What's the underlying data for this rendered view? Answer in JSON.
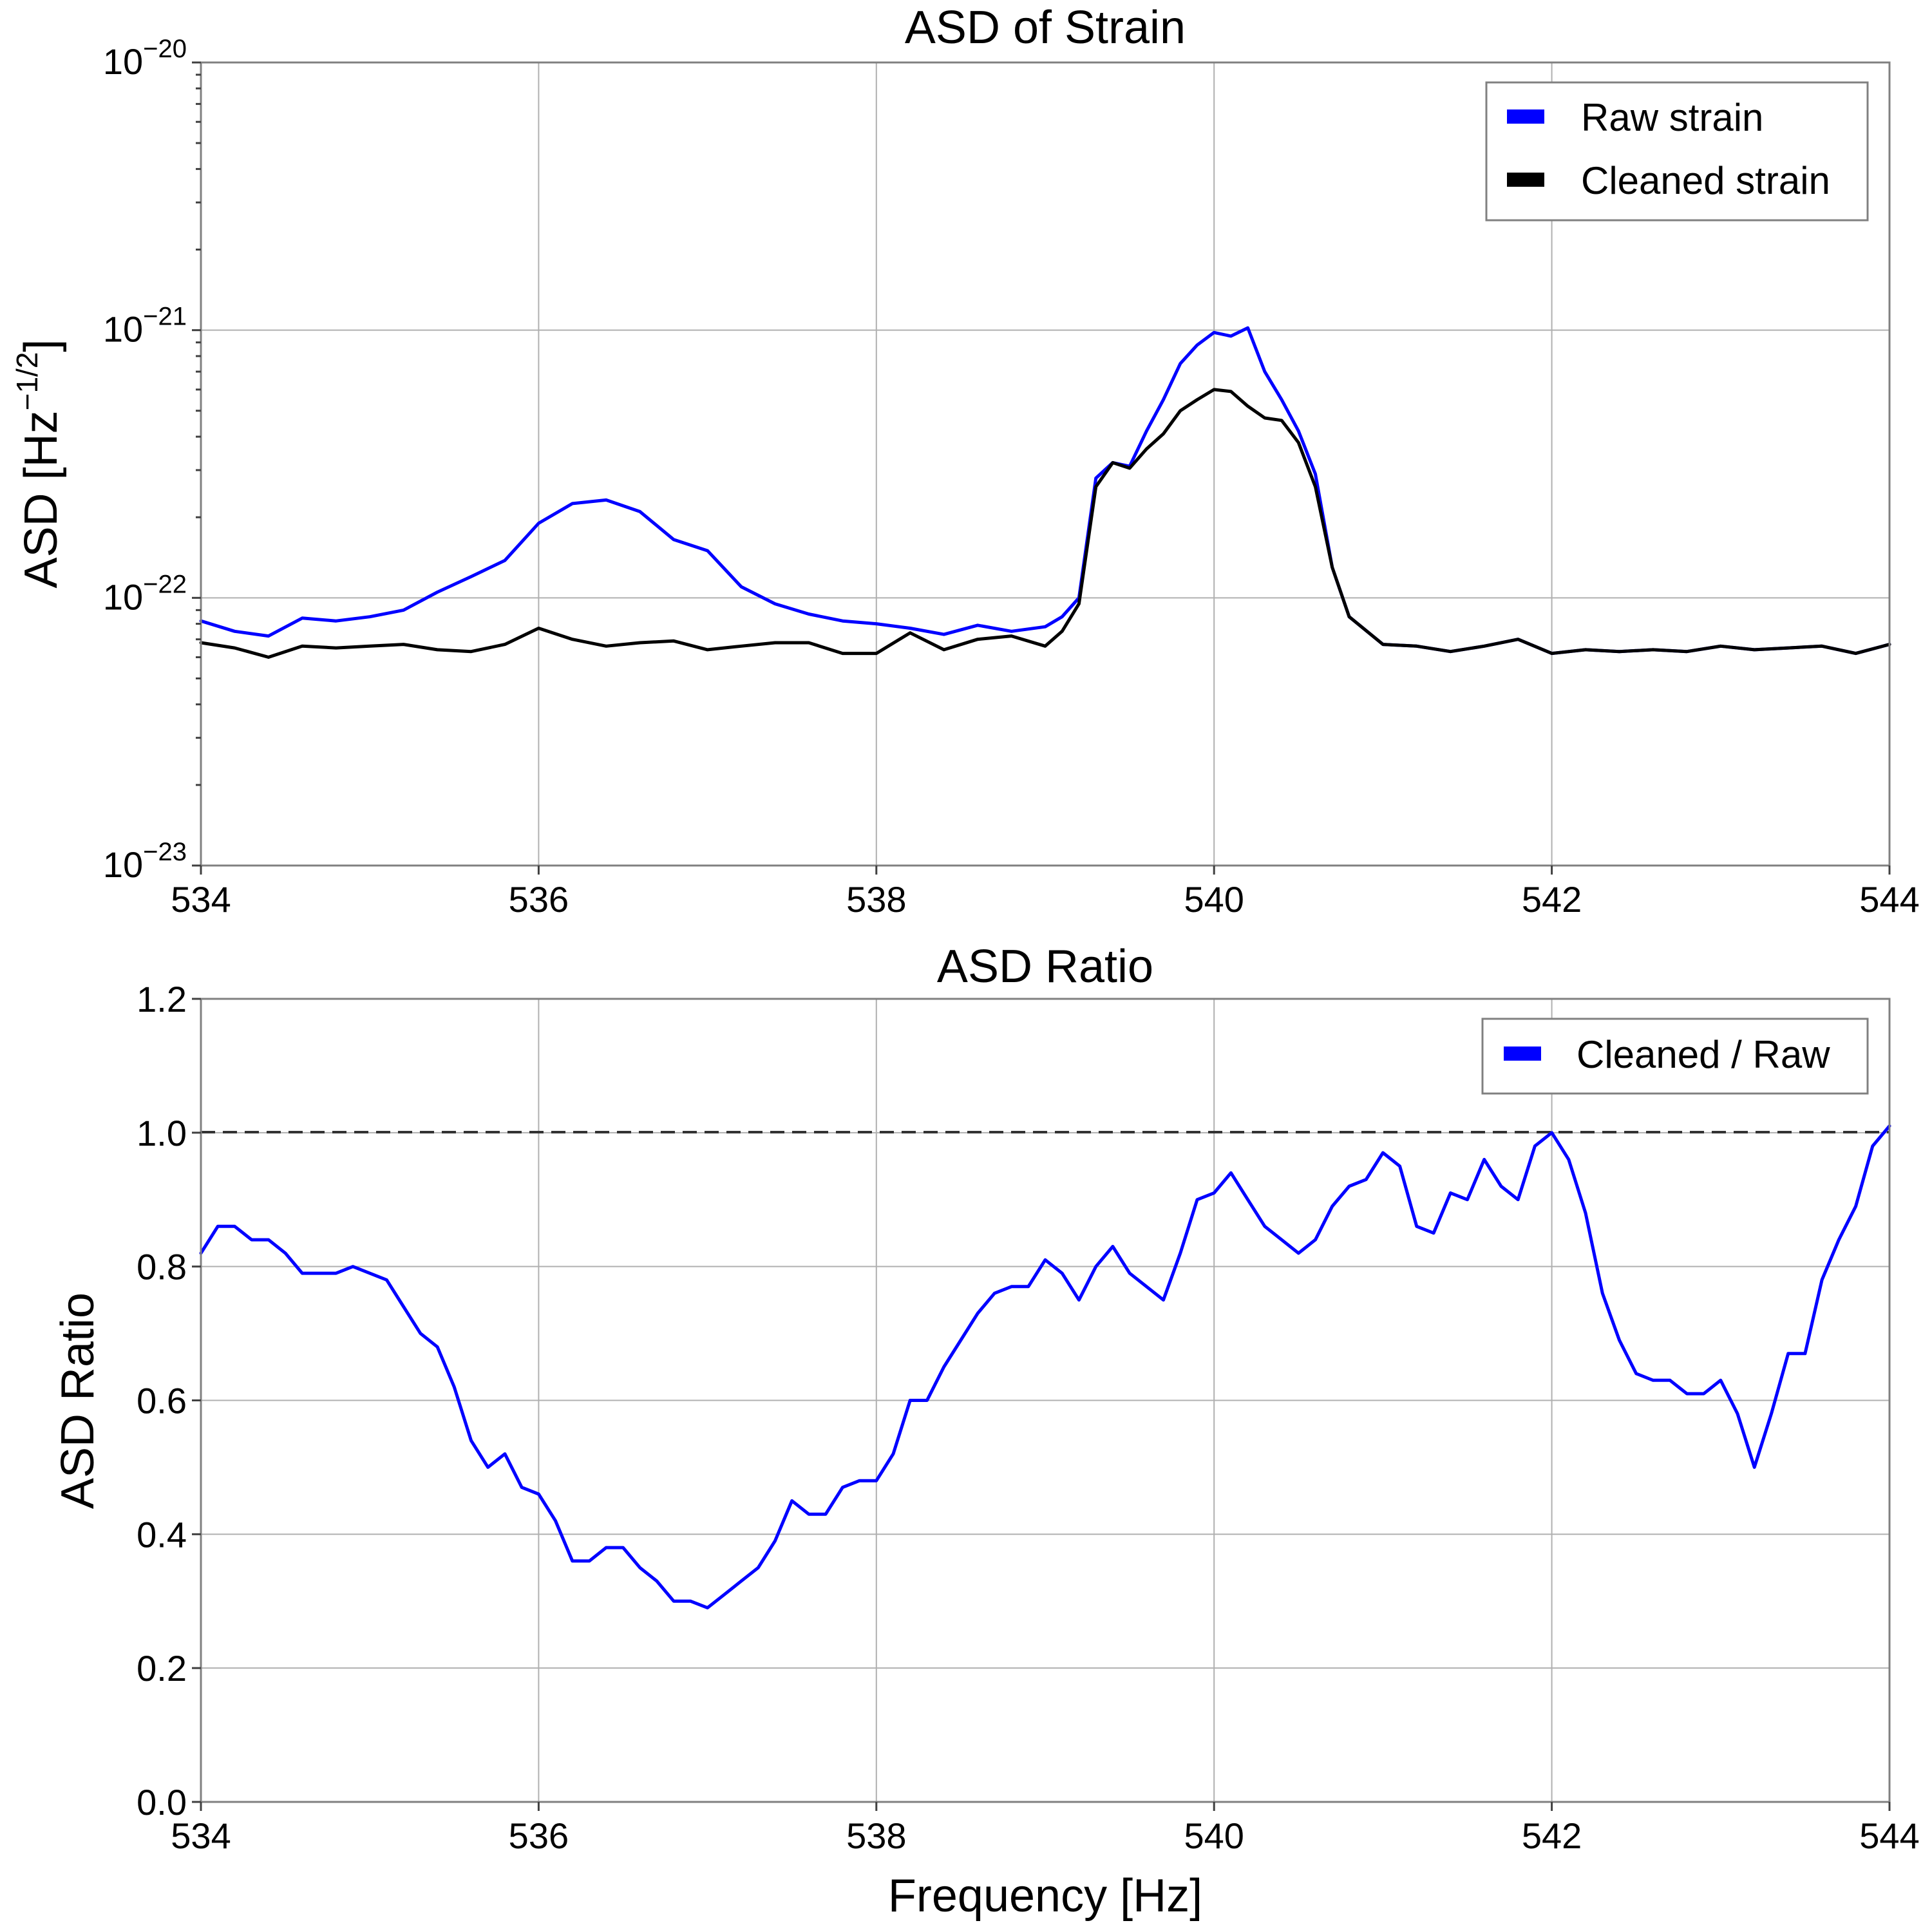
{
  "chart_data": [
    {
      "type": "line",
      "title": "ASD of Strain",
      "xlabel": "",
      "ylabel_main": "ASD [Hz",
      "ylabel_exp": "−1/2",
      "ylabel_close": "]",
      "xlim": [
        534,
        544
      ],
      "ylim": [
        1e-23,
        1e-20
      ],
      "yscale": "log",
      "grid": true,
      "legend_position": "top-right",
      "x_ticks": [
        534,
        536,
        538,
        540,
        542,
        544
      ],
      "x_tick_labels": [
        "534",
        "536",
        "538",
        "540",
        "542",
        "544"
      ],
      "y_ticks": [
        1e-23,
        1e-22,
        1e-21,
        1e-20
      ],
      "y_tick_labels": [
        {
          "base": "10",
          "exp": "−23"
        },
        {
          "base": "10",
          "exp": "−22"
        },
        {
          "base": "10",
          "exp": "−21"
        },
        {
          "base": "10",
          "exp": "−20"
        }
      ],
      "series": [
        {
          "name": "Raw strain",
          "color": "#0000ff",
          "points": [
            [
              534.0,
              8.2e-23
            ],
            [
              534.2,
              7.5e-23
            ],
            [
              534.4,
              7.2e-23
            ],
            [
              534.6,
              8.4e-23
            ],
            [
              534.8,
              8.2e-23
            ],
            [
              535.0,
              8.5e-23
            ],
            [
              535.2,
              9e-23
            ],
            [
              535.4,
              1.05e-22
            ],
            [
              535.6,
              1.2e-22
            ],
            [
              535.8,
              1.38e-22
            ],
            [
              536.0,
              1.9e-22
            ],
            [
              536.2,
              2.25e-22
            ],
            [
              536.4,
              2.32e-22
            ],
            [
              536.6,
              2.1e-22
            ],
            [
              536.8,
              1.65e-22
            ],
            [
              537.0,
              1.5e-22
            ],
            [
              537.2,
              1.1e-22
            ],
            [
              537.4,
              9.5e-23
            ],
            [
              537.6,
              8.7e-23
            ],
            [
              537.8,
              8.2e-23
            ],
            [
              538.0,
              8e-23
            ],
            [
              538.2,
              7.7e-23
            ],
            [
              538.4,
              7.3e-23
            ],
            [
              538.6,
              7.9e-23
            ],
            [
              538.8,
              7.5e-23
            ],
            [
              539.0,
              7.8e-23
            ],
            [
              539.1,
              8.5e-23
            ],
            [
              539.2,
              1e-22
            ],
            [
              539.3,
              2.8e-22
            ],
            [
              539.4,
              3.2e-22
            ],
            [
              539.5,
              3.1e-22
            ],
            [
              539.6,
              4.2e-22
            ],
            [
              539.7,
              5.5e-22
            ],
            [
              539.8,
              7.5e-22
            ],
            [
              539.9,
              8.8e-22
            ],
            [
              540.0,
              9.8e-22
            ],
            [
              540.1,
              9.5e-22
            ],
            [
              540.2,
              1.02e-21
            ],
            [
              540.3,
              7e-22
            ],
            [
              540.4,
              5.5e-22
            ],
            [
              540.5,
              4.2e-22
            ],
            [
              540.6,
              2.9e-22
            ],
            [
              540.7,
              1.3e-22
            ],
            [
              540.8,
              8.5e-23
            ],
            [
              541.0,
              6.7e-23
            ],
            [
              541.2,
              6.6e-23
            ],
            [
              541.4,
              6.3e-23
            ],
            [
              541.6,
              6.6e-23
            ],
            [
              541.8,
              7e-23
            ],
            [
              542.0,
              6.2e-23
            ],
            [
              542.2,
              6.4e-23
            ],
            [
              542.4,
              6.3e-23
            ],
            [
              542.6,
              6.4e-23
            ],
            [
              542.8,
              6.3e-23
            ],
            [
              543.0,
              6.6e-23
            ],
            [
              543.2,
              6.4e-23
            ],
            [
              543.4,
              6.5e-23
            ],
            [
              543.6,
              6.6e-23
            ],
            [
              543.8,
              6.2e-23
            ],
            [
              544.0,
              6.7e-23
            ]
          ]
        },
        {
          "name": "Cleaned strain",
          "color": "#000000",
          "points": [
            [
              534.0,
              6.8e-23
            ],
            [
              534.2,
              6.5e-23
            ],
            [
              534.4,
              6e-23
            ],
            [
              534.6,
              6.6e-23
            ],
            [
              534.8,
              6.5e-23
            ],
            [
              535.0,
              6.6e-23
            ],
            [
              535.2,
              6.7e-23
            ],
            [
              535.4,
              6.4e-23
            ],
            [
              535.6,
              6.3e-23
            ],
            [
              535.8,
              6.7e-23
            ],
            [
              536.0,
              7.7e-23
            ],
            [
              536.2,
              7e-23
            ],
            [
              536.4,
              6.6e-23
            ],
            [
              536.6,
              6.8e-23
            ],
            [
              536.8,
              6.9e-23
            ],
            [
              537.0,
              6.4e-23
            ],
            [
              537.2,
              6.6e-23
            ],
            [
              537.4,
              6.8e-23
            ],
            [
              537.6,
              6.8e-23
            ],
            [
              537.8,
              6.2e-23
            ],
            [
              538.0,
              6.2e-23
            ],
            [
              538.2,
              7.4e-23
            ],
            [
              538.4,
              6.4e-23
            ],
            [
              538.6,
              7e-23
            ],
            [
              538.8,
              7.2e-23
            ],
            [
              539.0,
              6.6e-23
            ],
            [
              539.1,
              7.5e-23
            ],
            [
              539.2,
              9.5e-23
            ],
            [
              539.3,
              2.6e-22
            ],
            [
              539.4,
              3.2e-22
            ],
            [
              539.5,
              3.05e-22
            ],
            [
              539.6,
              3.6e-22
            ],
            [
              539.7,
              4.1e-22
            ],
            [
              539.8,
              5e-22
            ],
            [
              539.9,
              5.5e-22
            ],
            [
              540.0,
              6e-22
            ],
            [
              540.1,
              5.9e-22
            ],
            [
              540.2,
              5.2e-22
            ],
            [
              540.3,
              4.7e-22
            ],
            [
              540.4,
              4.6e-22
            ],
            [
              540.5,
              3.8e-22
            ],
            [
              540.6,
              2.6e-22
            ],
            [
              540.7,
              1.3e-22
            ],
            [
              540.8,
              8.5e-23
            ],
            [
              541.0,
              6.7e-23
            ],
            [
              541.2,
              6.6e-23
            ],
            [
              541.4,
              6.3e-23
            ],
            [
              541.6,
              6.6e-23
            ],
            [
              541.8,
              7e-23
            ],
            [
              542.0,
              6.2e-23
            ],
            [
              542.2,
              6.4e-23
            ],
            [
              542.4,
              6.3e-23
            ],
            [
              542.6,
              6.4e-23
            ],
            [
              542.8,
              6.3e-23
            ],
            [
              543.0,
              6.6e-23
            ],
            [
              543.2,
              6.4e-23
            ],
            [
              543.4,
              6.5e-23
            ],
            [
              543.6,
              6.6e-23
            ],
            [
              543.8,
              6.2e-23
            ],
            [
              544.0,
              6.7e-23
            ]
          ]
        }
      ]
    },
    {
      "type": "line",
      "title": "ASD Ratio",
      "xlabel": "Frequency [Hz]",
      "ylabel": "ASD Ratio",
      "xlim": [
        534,
        544
      ],
      "ylim": [
        0.0,
        1.2
      ],
      "yscale": "linear",
      "grid": true,
      "legend_position": "top-right",
      "x_ticks": [
        534,
        536,
        538,
        540,
        542,
        544
      ],
      "x_tick_labels": [
        "534",
        "536",
        "538",
        "540",
        "542",
        "544"
      ],
      "y_ticks": [
        0.0,
        0.2,
        0.4,
        0.6,
        0.8,
        1.0,
        1.2
      ],
      "y_tick_labels": [
        "0.0",
        "0.2",
        "0.4",
        "0.6",
        "0.8",
        "1.0",
        "1.2"
      ],
      "reference_line": {
        "y": 1.0,
        "style": "dashed",
        "color": "#333333"
      },
      "series": [
        {
          "name": "Cleaned / Raw",
          "color": "#0000ff",
          "points": [
            [
              534.0,
              0.82
            ],
            [
              534.1,
              0.86
            ],
            [
              534.2,
              0.86
            ],
            [
              534.3,
              0.84
            ],
            [
              534.4,
              0.84
            ],
            [
              534.5,
              0.82
            ],
            [
              534.6,
              0.79
            ],
            [
              534.7,
              0.79
            ],
            [
              534.8,
              0.79
            ],
            [
              534.9,
              0.8
            ],
            [
              535.0,
              0.79
            ],
            [
              535.1,
              0.78
            ],
            [
              535.2,
              0.74
            ],
            [
              535.3,
              0.7
            ],
            [
              535.4,
              0.68
            ],
            [
              535.5,
              0.62
            ],
            [
              535.6,
              0.54
            ],
            [
              535.7,
              0.5
            ],
            [
              535.8,
              0.52
            ],
            [
              535.9,
              0.47
            ],
            [
              536.0,
              0.46
            ],
            [
              536.1,
              0.42
            ],
            [
              536.2,
              0.36
            ],
            [
              536.3,
              0.36
            ],
            [
              536.4,
              0.38
            ],
            [
              536.5,
              0.38
            ],
            [
              536.6,
              0.35
            ],
            [
              536.7,
              0.33
            ],
            [
              536.8,
              0.3
            ],
            [
              536.9,
              0.3
            ],
            [
              537.0,
              0.29
            ],
            [
              537.1,
              0.31
            ],
            [
              537.2,
              0.33
            ],
            [
              537.3,
              0.35
            ],
            [
              537.4,
              0.39
            ],
            [
              537.5,
              0.45
            ],
            [
              537.6,
              0.43
            ],
            [
              537.7,
              0.43
            ],
            [
              537.8,
              0.47
            ],
            [
              537.9,
              0.48
            ],
            [
              538.0,
              0.48
            ],
            [
              538.1,
              0.52
            ],
            [
              538.2,
              0.6
            ],
            [
              538.3,
              0.6
            ],
            [
              538.4,
              0.65
            ],
            [
              538.5,
              0.69
            ],
            [
              538.6,
              0.73
            ],
            [
              538.7,
              0.76
            ],
            [
              538.8,
              0.77
            ],
            [
              538.9,
              0.77
            ],
            [
              539.0,
              0.81
            ],
            [
              539.1,
              0.79
            ],
            [
              539.2,
              0.75
            ],
            [
              539.3,
              0.8
            ],
            [
              539.4,
              0.83
            ],
            [
              539.5,
              0.79
            ],
            [
              539.6,
              0.77
            ],
            [
              539.7,
              0.75
            ],
            [
              539.8,
              0.82
            ],
            [
              539.9,
              0.9
            ],
            [
              540.0,
              0.91
            ],
            [
              540.1,
              0.94
            ],
            [
              540.2,
              0.9
            ],
            [
              540.3,
              0.86
            ],
            [
              540.4,
              0.84
            ],
            [
              540.5,
              0.82
            ],
            [
              540.6,
              0.84
            ],
            [
              540.7,
              0.89
            ],
            [
              540.8,
              0.92
            ],
            [
              540.9,
              0.93
            ],
            [
              541.0,
              0.97
            ],
            [
              541.1,
              0.95
            ],
            [
              541.2,
              0.86
            ],
            [
              541.3,
              0.85
            ],
            [
              541.4,
              0.91
            ],
            [
              541.5,
              0.9
            ],
            [
              541.6,
              0.96
            ],
            [
              541.7,
              0.92
            ],
            [
              541.8,
              0.9
            ],
            [
              541.9,
              0.98
            ],
            [
              542.0,
              1.0
            ],
            [
              542.1,
              0.96
            ],
            [
              542.2,
              0.88
            ],
            [
              542.3,
              0.76
            ],
            [
              542.4,
              0.69
            ],
            [
              542.5,
              0.64
            ],
            [
              542.6,
              0.63
            ],
            [
              542.7,
              0.63
            ],
            [
              542.8,
              0.61
            ],
            [
              542.9,
              0.61
            ],
            [
              543.0,
              0.63
            ],
            [
              543.1,
              0.58
            ],
            [
              543.2,
              0.5
            ],
            [
              543.3,
              0.58
            ],
            [
              543.4,
              0.67
            ],
            [
              543.5,
              0.67
            ],
            [
              543.6,
              0.78
            ],
            [
              543.7,
              0.84
            ],
            [
              543.8,
              0.89
            ],
            [
              543.9,
              0.98
            ],
            [
              544.0,
              1.01
            ]
          ]
        }
      ]
    }
  ]
}
